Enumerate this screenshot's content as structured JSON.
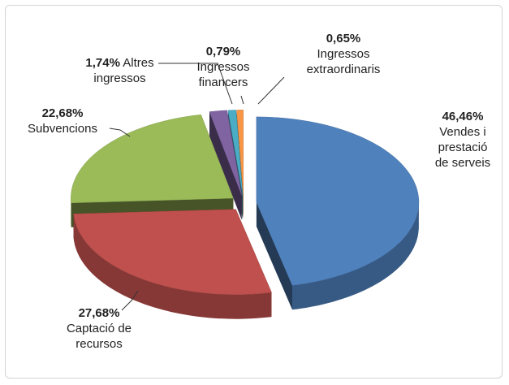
{
  "chart_data": {
    "type": "pie",
    "categories": [
      "Vendes i prestació de serveis",
      "Captació de recursos",
      "Subvencions",
      "Altres ingressos",
      "Ingressos financers",
      "Ingressos extraordinaris"
    ],
    "values": [
      46.46,
      27.68,
      22.68,
      1.74,
      0.79,
      0.65
    ],
    "value_labels": [
      "46,46%",
      "27,68%",
      "22,68%",
      "1,74%",
      "0,79%",
      "0,65%"
    ],
    "colors": [
      "#4f81bd",
      "#c0504d",
      "#9bbb59",
      "#8064a2",
      "#4bacc6",
      "#f79646"
    ]
  }
}
